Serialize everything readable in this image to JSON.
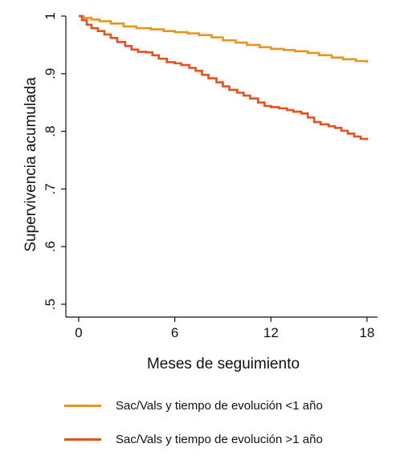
{
  "chart_data": {
    "type": "line",
    "step": true,
    "title": "",
    "xlabel": "Meses de seguimiento",
    "ylabel": "Supervivencia acumulada",
    "xlim": [
      0,
      18
    ],
    "ylim": [
      0.5,
      1
    ],
    "xticks": [
      0,
      6,
      12,
      18
    ],
    "xtick_labels": [
      "0",
      "6",
      "12",
      "18"
    ],
    "yticks": [
      0.5,
      0.6,
      0.7,
      0.8,
      0.9,
      1
    ],
    "ytick_labels": [
      ".5",
      ".6",
      ".7",
      ".8",
      ".9",
      "1"
    ],
    "grid": false,
    "legend_position": "bottom",
    "series": [
      {
        "name": "Sac/Vals y tiempo de evolución <1 año",
        "color": "#E8951F",
        "x": [
          0,
          0.3,
          0.8,
          1.3,
          2.0,
          2.8,
          3.6,
          4.5,
          5.3,
          6.0,
          6.8,
          7.5,
          8.3,
          9.0,
          9.8,
          10.5,
          11.3,
          12.0,
          12.8,
          13.5,
          14.3,
          15.0,
          15.8,
          16.5,
          17.3,
          18.0
        ],
        "y": [
          1.0,
          0.997,
          0.994,
          0.991,
          0.987,
          0.982,
          0.979,
          0.977,
          0.974,
          0.972,
          0.97,
          0.967,
          0.963,
          0.958,
          0.954,
          0.95,
          0.946,
          0.943,
          0.941,
          0.939,
          0.936,
          0.932,
          0.928,
          0.925,
          0.922,
          0.919
        ]
      },
      {
        "name": "Sac/Vals y tiempo de evolución >1 año",
        "color": "#E4501E",
        "x": [
          0,
          0.2,
          0.5,
          0.8,
          1.2,
          1.6,
          2.0,
          2.4,
          2.9,
          3.3,
          3.7,
          4.2,
          4.6,
          5.0,
          5.5,
          6.0,
          6.4,
          6.9,
          7.3,
          7.7,
          8.1,
          8.6,
          9.0,
          9.4,
          9.9,
          10.3,
          10.7,
          11.2,
          11.6,
          12.0,
          12.5,
          13.0,
          13.4,
          13.9,
          14.3,
          14.7,
          15.1,
          15.6,
          16.0,
          16.4,
          16.8,
          17.2,
          17.6,
          18.0
        ],
        "y": [
          1.0,
          0.993,
          0.985,
          0.979,
          0.974,
          0.968,
          0.962,
          0.955,
          0.948,
          0.942,
          0.938,
          0.937,
          0.932,
          0.926,
          0.92,
          0.918,
          0.915,
          0.91,
          0.905,
          0.898,
          0.892,
          0.885,
          0.878,
          0.872,
          0.867,
          0.862,
          0.857,
          0.85,
          0.844,
          0.842,
          0.84,
          0.837,
          0.834,
          0.831,
          0.824,
          0.816,
          0.812,
          0.809,
          0.806,
          0.801,
          0.796,
          0.791,
          0.787,
          0.785
        ]
      }
    ]
  }
}
